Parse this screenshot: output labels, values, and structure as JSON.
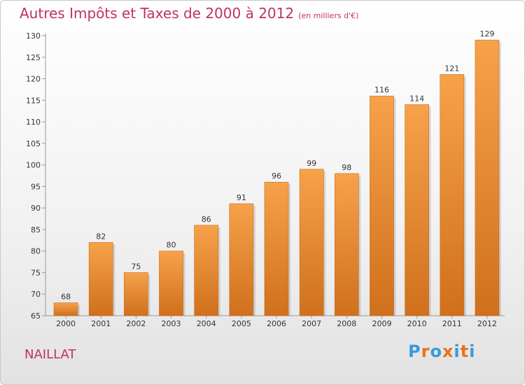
{
  "header": {
    "title": "Autres Impôts et Taxes de 2000 à 2012",
    "unit": "(en milliers d'€)"
  },
  "footer": {
    "commune": "NAILLAT",
    "logo": "Proxiti"
  },
  "colors": {
    "title": "#c0306a",
    "bar_top": "#f6a24a",
    "bar_bottom": "#d0701c",
    "logo_letters": [
      "#3a9ad9",
      "#e8731c",
      "#3a9ad9",
      "#e8731c",
      "#3a9ad9",
      "#e8731c",
      "#3a9ad9"
    ]
  },
  "chart_data": {
    "type": "bar",
    "categories": [
      "2000",
      "2001",
      "2002",
      "2003",
      "2004",
      "2005",
      "2006",
      "2007",
      "2008",
      "2009",
      "2010",
      "2011",
      "2012"
    ],
    "values": [
      68,
      82,
      75,
      80,
      86,
      91,
      96,
      99,
      98,
      116,
      114,
      121,
      129
    ],
    "ylim": [
      65,
      130
    ],
    "yticks": [
      65,
      70,
      75,
      80,
      85,
      90,
      95,
      100,
      105,
      110,
      115,
      120,
      125,
      130
    ],
    "grid": false
  }
}
